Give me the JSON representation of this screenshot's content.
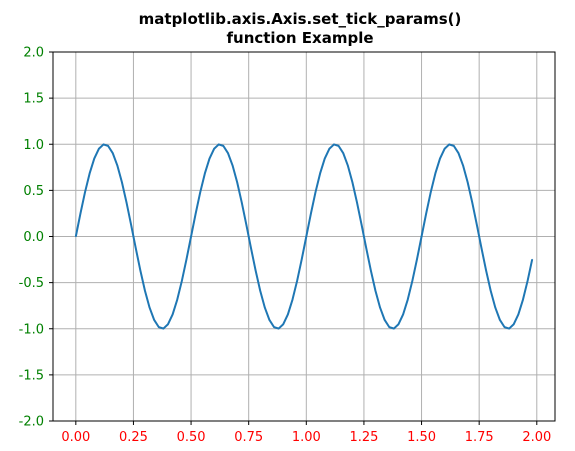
{
  "chart_data": {
    "type": "line",
    "title_lines": [
      "matplotlib.axis.Axis.set_tick_params()",
      "function Example"
    ],
    "xlabel": "",
    "ylabel": "",
    "xlim": [
      -0.099,
      2.079
    ],
    "ylim": [
      -2.0,
      2.0
    ],
    "xticks": [
      0.0,
      0.25,
      0.5,
      0.75,
      1.0,
      1.25,
      1.5,
      1.75,
      2.0
    ],
    "xtick_labels": [
      "0.00",
      "0.25",
      "0.50",
      "0.75",
      "1.00",
      "1.25",
      "1.50",
      "1.75",
      "2.00"
    ],
    "yticks": [
      -2.0,
      -1.5,
      -1.0,
      -0.5,
      0.0,
      0.5,
      1.0,
      1.5,
      2.0
    ],
    "ytick_labels": [
      "-2.0",
      "-1.5",
      "-1.0",
      "-0.5",
      "0.0",
      "0.5",
      "1.0",
      "1.5",
      "2.0"
    ],
    "grid": true,
    "series": [
      {
        "function": "sin(2*pi*2*t)",
        "t_start": 0.0,
        "t_stop": 2.0,
        "t_step": 0.02,
        "color": "#1f77b4"
      }
    ],
    "colors": {
      "xtick_label": "#ff0000",
      "ytick_label": "#008000",
      "grid": "#b0b0b0",
      "axes": "#000000"
    }
  }
}
